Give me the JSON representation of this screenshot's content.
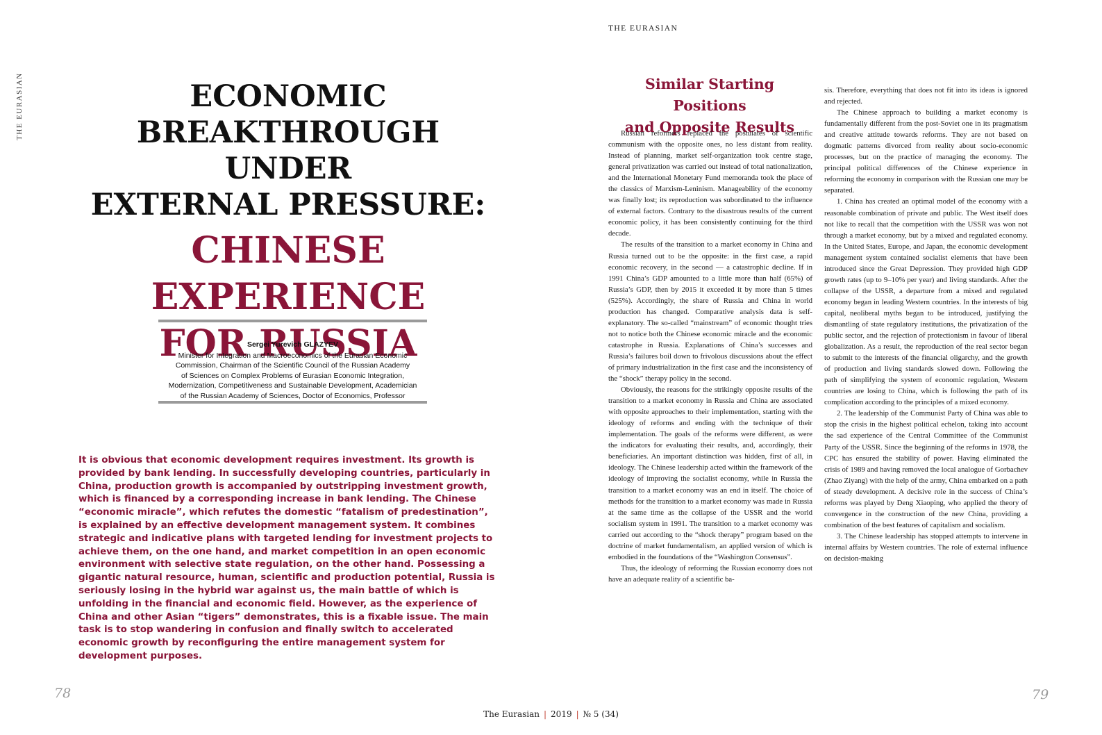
{
  "side_label": "THE EURASIAN",
  "running_head": "THE EURASIAN",
  "title": {
    "line1": "ECONOMIC",
    "line2": "BREAKTHROUGH UNDER",
    "line3": "EXTERNAL PRESSURE:",
    "red_line1": "CHINESE EXPERIENCE",
    "red_line2": "FOR RUSSIA"
  },
  "author": {
    "name": "Sergei Yurevich GLAZYEV",
    "lines": [
      "Minister for Integration and Macroeconomics of the Eurasian Economic",
      "Commission, Chairman of the Scientific Council of the Russian Academy",
      "of Sciences on Complex Problems of Eurasian Economic Integration,",
      "Modernization, Competitiveness and Sustainable Development, Academician",
      "of the Russian Academy of Sciences, Doctor of Economics, Professor"
    ]
  },
  "abstract": "It is obvious that economic development requires investment. Its growth is provided by bank lending. In successfully developing countries, particularly in China, production growth is accompanied by outstripping investment growth, which is financed by a corresponding increase in bank lending. The Chinese “economic miracle”, which refutes the domestic “fatalism of predestination”, is explained by an effective development management system. It combines strategic and indicative plans with targeted lending for investment projects to achieve them, on the one hand, and market competition in an open economic environment with selective state regulation, on the other hand. Possessing a gigantic natural resource, human, scientific and production potential, Russia is seriously losing in the hybrid war against us, the main battle of which is unfolding in the financial and economic field. However, as the experience of China and other Asian “tigers” demonstrates, this is a fixable issue. The main task is to stop wandering in confusion and finally switch to accelerated economic growth by reconfiguring the entire management system for development purposes.",
  "section_heading": {
    "line1": "Similar Starting Positions",
    "line2": "and Opposite Results"
  },
  "column1": [
    "Russian reformers replaced the postulates of scientific communism with the opposite ones, no less distant from reality. Instead of planning, market self-organization took centre stage, general privatization was carried out instead of total nationalization, and the International Monetary Fund memoranda took the place of the classics of Marxism-Leninism. Manageability of the economy was finally lost; its reproduction was subordinated to the influence of external factors. Contrary to the disastrous results of the current economic policy, it has been consistently continuing for the third decade.",
    "The results of the transition to a market economy in China and Russia turned out to be the opposite: in the first case, a rapid economic recovery, in the second — a catastrophic decline. If in 1991 China’s GDP amounted to a little more than half (65%) of Russia’s GDP, then by 2015 it exceeded it by more than 5 times (525%). Accordingly, the share of Russia and China in world production has changed. Comparative analysis data is self-explanatory. The so-called “mainstream” of economic thought tries not to notice both the Chinese economic miracle and the economic catastrophe in Russia. Explanations of China’s successes and Russia’s failures boil down to frivolous discussions about the effect of primary industrialization in the first case and the inconsistency of the “shock” therapy policy in the second.",
    "Obviously, the reasons for the strikingly opposite results of the transition to a market economy in Russia and China are associated with opposite approaches to their implementation, starting with the ideology of reforms and ending with the technique of their implementation. The goals of the reforms were different, as were the indicators for evaluating their results, and, accordingly, their beneficiaries. An important distinction was hidden, first of all, in ideology. The Chinese leadership acted within the framework of the ideology of improving the socialist economy, while in Russia the transition to a market economy was an end in itself. The choice of methods for the transition to a market economy was made in Russia at the same time as the collapse of the USSR and the world socialism system in 1991. The transition to a market economy was carried out according to the “shock therapy” program based on the doctrine of market fundamentalism, an applied version of which is embodied in the foundations of the “Washington Consensus”.",
    "Thus, the ideology of reforming the Russian economy does not have an adequate reality of a scientific ba-"
  ],
  "column2": [
    "sis. Therefore, everything that does not fit into its ideas is ignored and rejected.",
    "The Chinese approach to building a market economy is fundamentally different from the post-Soviet one in its pragmatism and creative attitude towards reforms. They are not based on dogmatic patterns divorced from reality about socio-economic processes, but on the practice of managing the economy. The principal political differences of the Chinese experience in reforming the economy in comparison with the Russian one may be separated.",
    "1. China has created an optimal model of the economy with a reasonable combination of private and public. The West itself does not like to recall that the competition with the USSR was won not through a market economy, but by a mixed and regulated economy. In the United States, Europe, and Japan, the economic development management system contained socialist elements that have been introduced since the Great Depression. They provided high GDP growth rates (up to 9–10% per year) and living standards. After the collapse of the USSR, a departure from a mixed and regulated economy began in leading Western countries. In the interests of big capital, neoliberal myths began to be introduced, justifying the dismantling of state regulatory institutions, the privatization of the public sector, and the rejection of protectionism in favour of liberal globalization. As a result, the reproduction of the real sector began to submit to the interests of the financial oligarchy, and the growth of production and living standards slowed down. Following the path of simplifying the system of economic regulation, Western countries are losing to China, which is following the path of its complication according to the principles of a mixed economy.",
    "2. The leadership of the Communist Party of China was able to stop the crisis in the highest political echelon, taking into account the sad experience of the Central Committee of the Communist Party of the USSR. Since the beginning of the reforms in 1978, the CPC has ensured the stability of power. Having eliminated the crisis of 1989 and having removed the local analogue of Gorbachev (Zhao Ziyang) with the help of the army, China embarked on a path of steady development. A decisive role in the success of China’s reforms was played by Deng Xiaoping, who applied the theory of convergence in the construction of the new China, providing a combination of the best features of capitalism and socialism.",
    "3. The Chinese leadership has stopped attempts to intervene in internal affairs by Western countries. The role of external influence on decision-making"
  ],
  "page_left": "78",
  "page_right": "79",
  "footer": {
    "journal": "The Eurasian",
    "year": "2019",
    "issue": "№ 5 (34)",
    "separator": "|"
  }
}
